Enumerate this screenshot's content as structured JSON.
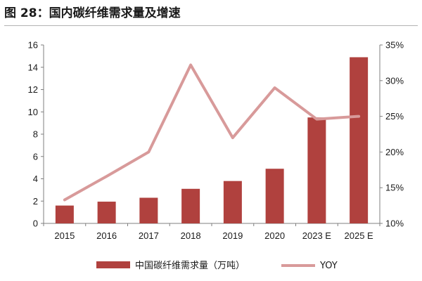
{
  "title": "图 28：国内碳纤维需求量及增速",
  "chart_data": {
    "type": "bar",
    "categories": [
      "2015",
      "2016",
      "2017",
      "2018",
      "2019",
      "2020",
      "2023E",
      "2025E"
    ],
    "series": [
      {
        "name": "中国碳纤维需求量（万吨）",
        "type": "bar",
        "axis": "left",
        "values": [
          1.6,
          1.95,
          2.3,
          3.1,
          3.8,
          4.9,
          9.5,
          14.9
        ]
      },
      {
        "name": "YOY",
        "type": "line",
        "axis": "right",
        "values": [
          13.3,
          16.6,
          20.0,
          32.2,
          22.0,
          29.0,
          24.6,
          25.0
        ]
      }
    ],
    "y_left": {
      "ylim": [
        0,
        16
      ],
      "ticks": [
        "0",
        "2",
        "4",
        "6",
        "8",
        "10",
        "12",
        "14",
        "16"
      ]
    },
    "y_right": {
      "ylim": [
        10,
        35
      ],
      "ticks": [
        "10%",
        "15%",
        "20%",
        "25%",
        "30%",
        "35%"
      ]
    },
    "x_tick_labels": [
      "2015",
      "2016",
      "2017",
      "2018",
      "2019",
      "2020",
      "2023 E",
      "2025 E"
    ],
    "colors": {
      "bar": "#B0413E",
      "line": "#D89A9A",
      "axis": "#7f7f7f",
      "title_rule": "#b3b3b3"
    },
    "legend": {
      "position": "bottom",
      "entries": [
        "中国碳纤维需求量（万吨）",
        "YOY"
      ]
    },
    "grid": false
  }
}
